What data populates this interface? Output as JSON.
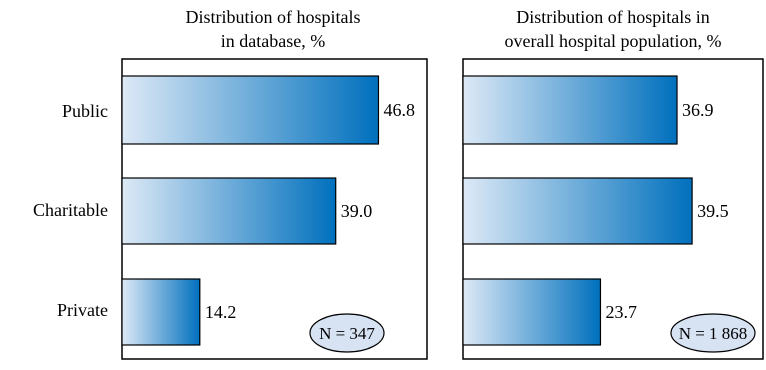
{
  "chart_data": [
    {
      "type": "bar",
      "orientation": "horizontal",
      "title_lines": [
        "Distribution of hospitals",
        "in database, %"
      ],
      "categories": [
        "Public",
        "Charitable",
        "Private"
      ],
      "values": [
        46.8,
        39.0,
        14.2
      ],
      "value_labels": [
        "46.8",
        "39.0",
        "14.2"
      ],
      "xlim": [
        0,
        50
      ],
      "grid": false,
      "annotation": "N = 347"
    },
    {
      "type": "bar",
      "orientation": "horizontal",
      "title_lines": [
        "Distribution of hospitals in",
        "overall hospital population, %"
      ],
      "categories": [
        "Public",
        "Charitable",
        "Private"
      ],
      "values": [
        36.9,
        39.5,
        23.7
      ],
      "value_labels": [
        "36.9",
        "39.5",
        "23.7"
      ],
      "xlim": [
        0,
        50
      ],
      "grid": false,
      "annotation": "N = 1 868"
    }
  ],
  "colors": {
    "bar_light": "#dde9f6",
    "bar_dark": "#0070bd",
    "oval_fill": "#d7e3f3",
    "frame": "#000000",
    "text": "#000000"
  }
}
